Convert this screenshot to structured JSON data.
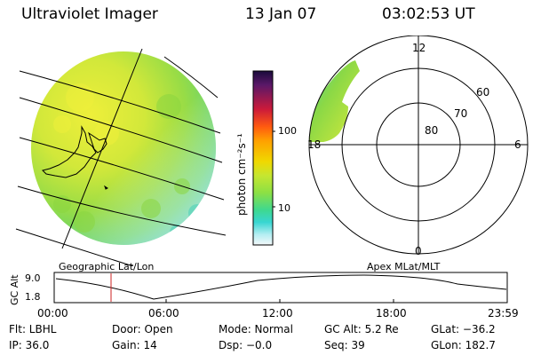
{
  "header": {
    "title": "Ultraviolet Imager",
    "date": "13 Jan 07",
    "time": "03:02:53 UT"
  },
  "colorbar": {
    "unit_label": "photon cm⁻²s⁻¹",
    "ticks": [
      {
        "label": "100",
        "value": 100
      },
      {
        "label": "10",
        "value": 10
      }
    ],
    "colors": [
      "#1a0b3b",
      "#6a1a6a",
      "#cc1a3a",
      "#ff5a10",
      "#ff9a00",
      "#f2d000",
      "#c8e830",
      "#8ce040",
      "#3ed888",
      "#38d8d0",
      "#a8ecf0",
      "#f4f8fa"
    ]
  },
  "left_panel": {
    "caption": "Geographic Lat/Lon"
  },
  "right_panel": {
    "caption": "Apex MLat/MLT",
    "mlt_labels": {
      "top": "12",
      "right": "6",
      "bottom": "0",
      "left": "18"
    },
    "mlat_labels": [
      "60",
      "70",
      "80"
    ]
  },
  "altitude_plot": {
    "ylabel": "GC Alt",
    "yticks": [
      "9.0",
      "1.8"
    ],
    "xticks": [
      "00:00",
      "06:00",
      "12:00",
      "18:00",
      "23:59"
    ],
    "marker_time": "03:02:53"
  },
  "info": {
    "filter": "Flt: LBHL",
    "door": "Door: Open",
    "mode": "Mode: Normal",
    "gc_alt": "GC Alt: 5.2 Re",
    "glat": "GLat: −36.2",
    "ip": "IP: 36.0",
    "gain": "Gain: 14",
    "dsp": "Dsp:  −0.0",
    "seq": "Seq: 39",
    "glon": "GLon: 182.7"
  },
  "colors": {
    "image_yellow": "#d8ea3c",
    "image_green": "#8fdc48",
    "image_cyan": "#5fd8c8",
    "marker_red": "#cc2222"
  }
}
